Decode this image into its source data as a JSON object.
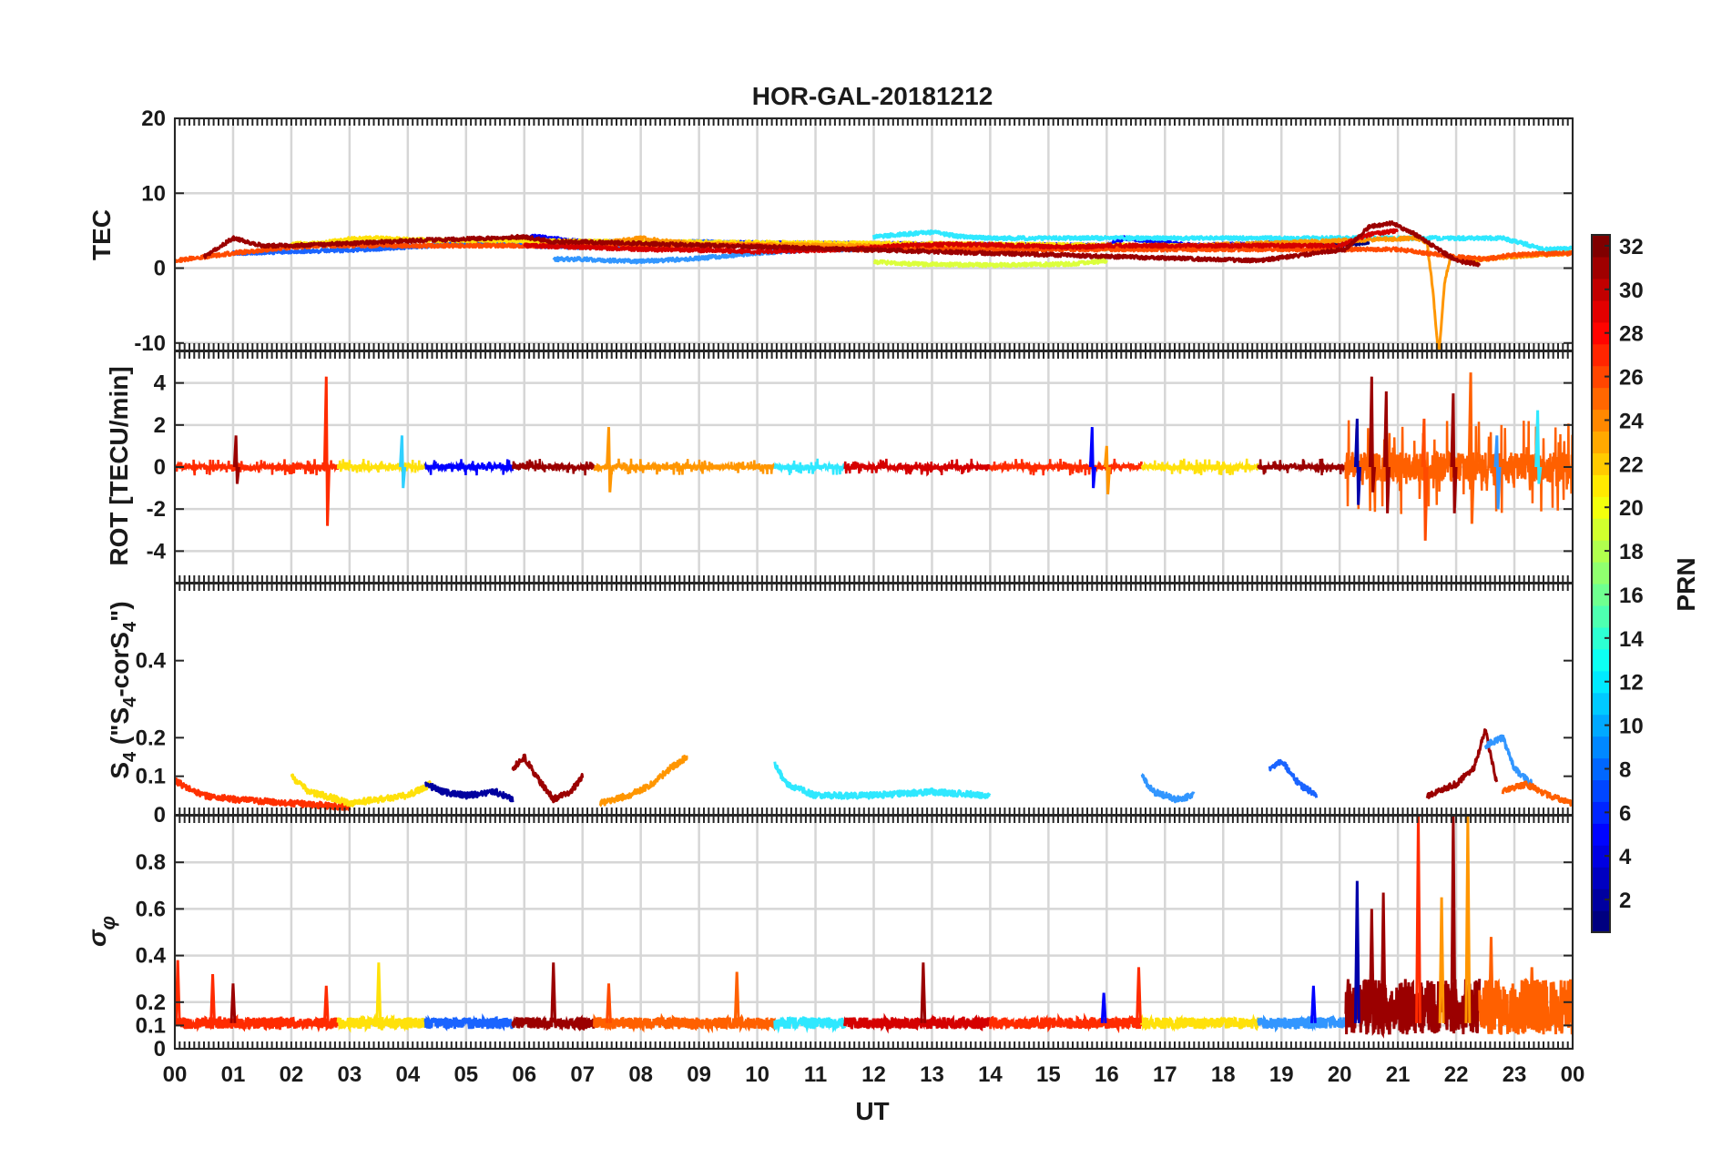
{
  "chart_data": [
    {
      "type": "line",
      "title": "HOR-GAL-20181212",
      "panel": "TEC",
      "ylabel": "TEC",
      "xlabel": "",
      "ylim": [
        -11,
        20
      ],
      "yticks": [
        20,
        10,
        0,
        -10
      ],
      "ytick_labels": [
        "20",
        "10",
        "0",
        "-10"
      ],
      "grid": true,
      "series": [
        {
          "prn": 1,
          "color": "#00007f",
          "x": [
            19.5,
            20.0,
            20.5
          ],
          "y": [
            3.2,
            3.0,
            3.5
          ]
        },
        {
          "prn": 4,
          "color": "#0000ff",
          "x": [
            4.5,
            5.5,
            6.2,
            7.0,
            16.0,
            16.3,
            17.5,
            18.5,
            19.2
          ],
          "y": [
            3.2,
            3.6,
            4.2,
            3.5,
            3.0,
            4.0,
            3.0,
            3.2,
            3.5
          ]
        },
        {
          "prn": 8,
          "color": "#1a64ff",
          "x": [
            1.0,
            2.0,
            3.0,
            4.5,
            5.5,
            6.0,
            7.0,
            9.0,
            10.5,
            11.5
          ],
          "y": [
            2.0,
            2.2,
            2.4,
            3.0,
            3.5,
            3.0,
            2.8,
            3.5,
            3.0,
            2.5
          ]
        },
        {
          "prn": 10,
          "color": "#3296ff",
          "x": [
            6.5,
            7.0,
            7.5,
            8.0,
            9.0,
            10.0,
            11.0,
            12.0,
            12.5
          ],
          "y": [
            1.2,
            1.2,
            1.0,
            0.9,
            1.3,
            2.0,
            2.5,
            2.5,
            2.6
          ]
        },
        {
          "prn": 13,
          "color": "#2fe8ff",
          "x": [
            12.0,
            12.5,
            13.0,
            13.5,
            14.0,
            22.8,
            23.2,
            23.5,
            24.0
          ],
          "y": [
            4.2,
            4.5,
            4.8,
            4.2,
            4.0,
            4.0,
            3.2,
            2.5,
            2.6
          ]
        },
        {
          "prn": 19,
          "color": "#dcff3c",
          "x": [
            12.0,
            12.5,
            13.0,
            14.0,
            15.0,
            15.5,
            16.0
          ],
          "y": [
            0.8,
            0.6,
            0.5,
            0.4,
            0.5,
            0.6,
            1.0
          ]
        },
        {
          "prn": 21,
          "color": "#ffe10a",
          "x": [
            2.0,
            2.5,
            3.0,
            3.5,
            4.0,
            4.5,
            17.0,
            18.0
          ],
          "y": [
            3.2,
            3.3,
            3.9,
            4.0,
            3.8,
            3.7,
            3.0,
            2.8
          ]
        },
        {
          "prn": 23,
          "color": "#ff9600",
          "x": [
            7.5,
            8.0,
            8.5,
            9.0,
            15.0,
            16.0,
            21.3,
            21.5,
            21.6,
            21.7,
            21.8,
            21.9,
            22.2,
            23.0,
            24.0
          ],
          "y": [
            3.5,
            4.0,
            3.5,
            3.2,
            2.7,
            2.6,
            4.0,
            3.5,
            -3.0,
            -12.0,
            -2.0,
            1.5,
            1.0,
            1.6,
            2.0
          ]
        },
        {
          "prn": 26,
          "color": "#ff4b00",
          "x": [
            0.0,
            1.0,
            2.0,
            2.5,
            10.0,
            11.0,
            15.0,
            21.0,
            22.0,
            22.5,
            23.0,
            24.0
          ],
          "y": [
            1.0,
            2.0,
            2.8,
            3.0,
            3.0,
            2.5,
            2.5,
            2.5,
            1.5,
            1.2,
            1.8,
            2.0
          ]
        },
        {
          "prn": 29,
          "color": "#d50000",
          "x": [
            6.0,
            7.0,
            8.0,
            9.0,
            10.0,
            11.5,
            12.5,
            13.5,
            14.5,
            15.5,
            16.0,
            20.0,
            20.5,
            21.0
          ],
          "y": [
            3.0,
            2.8,
            2.5,
            2.4,
            2.2,
            2.5,
            3.0,
            3.2,
            3.0,
            2.8,
            3.0,
            3.0,
            4.5,
            5.0
          ]
        },
        {
          "prn": 31,
          "color": "#9b0000",
          "x": [
            0.5,
            1.0,
            1.5,
            2.0,
            3.0,
            4.5,
            5.5,
            6.0,
            6.5,
            7.0,
            18.6,
            18.8,
            20.1,
            20.5,
            20.9,
            21.3,
            21.6,
            22.0,
            22.4
          ],
          "y": [
            1.5,
            4.0,
            3.0,
            3.0,
            3.3,
            3.8,
            4.0,
            4.2,
            3.5,
            3.5,
            1.0,
            1.2,
            2.5,
            5.5,
            6.0,
            4.5,
            3.0,
            1.0,
            0.5
          ]
        }
      ]
    },
    {
      "type": "line",
      "panel": "ROT",
      "ylabel": "ROT [TECU/min]",
      "xlabel": "",
      "ylim": [
        -5.5,
        5.5
      ],
      "yticks": [
        4,
        2,
        0,
        -2,
        -4
      ],
      "ytick_labels": [
        "4",
        "2",
        "0",
        "-2",
        "-4"
      ],
      "grid": true,
      "spikes": [
        {
          "x": 1.05,
          "ymax": 1.5,
          "ymin": -0.8,
          "color": "#9b0000"
        },
        {
          "x": 2.6,
          "ymax": 4.3,
          "ymin": -2.8,
          "color": "#ff2b00"
        },
        {
          "x": 3.9,
          "ymax": 1.5,
          "ymin": -1.0,
          "color": "#2fd0ff"
        },
        {
          "x": 7.45,
          "ymax": 1.9,
          "ymin": -1.2,
          "color": "#ff9600"
        },
        {
          "x": 15.75,
          "ymax": 1.9,
          "ymin": -1.0,
          "color": "#0000ff"
        },
        {
          "x": 16.0,
          "ymax": 1.0,
          "ymin": -1.3,
          "color": "#ff9600"
        },
        {
          "x": 20.3,
          "ymax": 2.3,
          "ymin": -1.8,
          "color": "#0000aa"
        },
        {
          "x": 20.55,
          "ymax": 4.3,
          "ymin": -1.2,
          "color": "#9b0000"
        },
        {
          "x": 20.8,
          "ymax": 3.6,
          "ymin": -2.2,
          "color": "#9b0000"
        },
        {
          "x": 21.45,
          "ymax": 2.3,
          "ymin": -3.5,
          "color": "#ff4b00"
        },
        {
          "x": 21.95,
          "ymax": 3.5,
          "ymin": -2.2,
          "color": "#9b0000"
        },
        {
          "x": 22.25,
          "ymax": 4.5,
          "ymin": -2.7,
          "color": "#ff6000"
        },
        {
          "x": 22.7,
          "ymax": 1.5,
          "ymin": -2.0,
          "color": "#3296ff"
        },
        {
          "x": 23.4,
          "ymax": 2.7,
          "ymin": -0.8,
          "color": "#2fe8ff"
        }
      ]
    },
    {
      "type": "line",
      "panel": "S4",
      "ylabel": "S4 (\"S4-corS4\")",
      "xlabel": "",
      "ylim": [
        0,
        0.6
      ],
      "yticks": [
        0.4,
        0.2,
        0.1,
        0
      ],
      "ytick_labels": [
        "0.4",
        "0.2",
        "0.1",
        "0"
      ],
      "grid": false,
      "series": [
        {
          "prn": 26,
          "color": "#ff3000",
          "x": [
            0.0,
            0.2,
            0.5,
            1.0,
            2.0,
            3.0
          ],
          "y": [
            0.09,
            0.07,
            0.05,
            0.04,
            0.03,
            0.02
          ]
        },
        {
          "prn": 21,
          "color": "#ffe10a",
          "x": [
            2.0,
            2.3,
            2.8,
            3.0,
            4.0,
            4.4
          ],
          "y": [
            0.1,
            0.06,
            0.04,
            0.03,
            0.05,
            0.08
          ]
        },
        {
          "prn": 2,
          "color": "#00009f",
          "x": [
            4.3,
            4.6,
            5.0,
            5.5,
            5.8
          ],
          "y": [
            0.08,
            0.06,
            0.05,
            0.06,
            0.04
          ]
        },
        {
          "prn": 31,
          "color": "#9b0000",
          "x": [
            5.8,
            6.0,
            6.2,
            6.5,
            6.8,
            7.0
          ],
          "y": [
            0.12,
            0.15,
            0.1,
            0.04,
            0.06,
            0.1
          ]
        },
        {
          "prn": 23,
          "color": "#ff9600",
          "x": [
            7.3,
            7.8,
            8.2,
            8.5,
            8.8
          ],
          "y": [
            0.03,
            0.05,
            0.08,
            0.12,
            0.15
          ]
        },
        {
          "prn": 12,
          "color": "#2fe8ff",
          "x": [
            10.3,
            10.5,
            11.0,
            12.0,
            13.0,
            14.0
          ],
          "y": [
            0.13,
            0.08,
            0.05,
            0.05,
            0.06,
            0.05
          ]
        },
        {
          "prn": 10,
          "color": "#3296ff",
          "x": [
            16.6,
            16.8,
            17.2,
            17.5
          ],
          "y": [
            0.1,
            0.06,
            0.04,
            0.05
          ]
        },
        {
          "prn": 9,
          "color": "#1a64ff",
          "x": [
            18.8,
            19.0,
            19.3,
            19.6
          ],
          "y": [
            0.12,
            0.14,
            0.08,
            0.05
          ]
        },
        {
          "prn": 31,
          "color": "#9b0000",
          "x": [
            21.5,
            22.0,
            22.3,
            22.5,
            22.7
          ],
          "y": [
            0.05,
            0.08,
            0.12,
            0.22,
            0.08
          ]
        },
        {
          "prn": 10,
          "color": "#3296ff",
          "x": [
            22.5,
            22.8,
            23.0,
            23.3
          ],
          "y": [
            0.18,
            0.2,
            0.12,
            0.08
          ]
        },
        {
          "prn": 25,
          "color": "#ff6000",
          "x": [
            22.8,
            23.2,
            23.6,
            24.0
          ],
          "y": [
            0.06,
            0.08,
            0.05,
            0.03
          ]
        }
      ]
    },
    {
      "type": "line",
      "panel": "sigma_phi",
      "ylabel": "σφ",
      "xlabel": "UT",
      "xlim": [
        0,
        24
      ],
      "xtick_labels": [
        "00",
        "01",
        "02",
        "03",
        "04",
        "05",
        "06",
        "07",
        "08",
        "09",
        "10",
        "11",
        "12",
        "13",
        "14",
        "15",
        "16",
        "17",
        "18",
        "19",
        "20",
        "21",
        "22",
        "23",
        "00"
      ],
      "ylim": [
        0,
        1
      ],
      "yticks": [
        0.8,
        0.6,
        0.4,
        0.2,
        0.1,
        0
      ],
      "ytick_labels": [
        "0.8",
        "0.6",
        "0.4",
        "0.2",
        "0.1",
        "0"
      ],
      "grid": true,
      "spikes": [
        {
          "x": 0.05,
          "ymax": 0.38,
          "color": "#ff2b00"
        },
        {
          "x": 0.65,
          "ymax": 0.32,
          "color": "#ff2b00"
        },
        {
          "x": 1.0,
          "ymax": 0.28,
          "color": "#9b0000"
        },
        {
          "x": 2.6,
          "ymax": 0.27,
          "color": "#ff2b00"
        },
        {
          "x": 3.5,
          "ymax": 0.37,
          "color": "#ffe10a"
        },
        {
          "x": 6.5,
          "ymax": 0.37,
          "color": "#9b0000"
        },
        {
          "x": 7.45,
          "ymax": 0.28,
          "color": "#ff4b00"
        },
        {
          "x": 9.65,
          "ymax": 0.33,
          "color": "#ff6000"
        },
        {
          "x": 12.85,
          "ymax": 0.37,
          "color": "#9b0000"
        },
        {
          "x": 15.95,
          "ymax": 0.24,
          "color": "#0000ff"
        },
        {
          "x": 16.55,
          "ymax": 0.35,
          "color": "#ff2b00"
        },
        {
          "x": 19.55,
          "ymax": 0.27,
          "color": "#0000ff"
        },
        {
          "x": 20.3,
          "ymax": 0.72,
          "color": "#0000aa"
        },
        {
          "x": 20.55,
          "ymax": 0.6,
          "color": "#9b0000"
        },
        {
          "x": 20.75,
          "ymax": 0.67,
          "color": "#9b0000"
        },
        {
          "x": 21.35,
          "ymax": 1.0,
          "color": "#ff2b00"
        },
        {
          "x": 21.75,
          "ymax": 0.65,
          "color": "#ff9600"
        },
        {
          "x": 21.95,
          "ymax": 1.0,
          "color": "#9b0000"
        },
        {
          "x": 22.2,
          "ymax": 1.0,
          "color": "#ff9600"
        },
        {
          "x": 22.6,
          "ymax": 0.48,
          "color": "#ff6000"
        },
        {
          "x": 23.3,
          "ymax": 0.35,
          "color": "#ff6000"
        }
      ],
      "segments": [
        {
          "x0": 0.0,
          "x1": 2.8,
          "color": "#ff2b00"
        },
        {
          "x0": 2.8,
          "x1": 4.3,
          "color": "#ffe10a"
        },
        {
          "x0": 4.3,
          "x1": 5.8,
          "color": "#1a64ff"
        },
        {
          "x0": 5.8,
          "x1": 7.2,
          "color": "#9b0000"
        },
        {
          "x0": 7.2,
          "x1": 10.3,
          "color": "#ff6000"
        },
        {
          "x0": 10.3,
          "x1": 11.5,
          "color": "#2fe8ff"
        },
        {
          "x0": 11.5,
          "x1": 14.0,
          "color": "#d50000"
        },
        {
          "x0": 14.0,
          "x1": 16.6,
          "color": "#ff2b00"
        },
        {
          "x0": 16.6,
          "x1": 18.6,
          "color": "#ffe10a"
        },
        {
          "x0": 18.6,
          "x1": 20.1,
          "color": "#3296ff"
        },
        {
          "x0": 20.1,
          "x1": 22.4,
          "color": "#9b0000"
        },
        {
          "x0": 22.4,
          "x1": 24.0,
          "color": "#ff6000"
        }
      ]
    }
  ],
  "colorbar": {
    "label": "PRN",
    "range": [
      1,
      32
    ],
    "tick_values": [
      32,
      30,
      28,
      26,
      24,
      22,
      20,
      18,
      16,
      14,
      12,
      10,
      8,
      6,
      4,
      2
    ],
    "tick_labels": [
      "32",
      "30",
      "28",
      "26",
      "24",
      "22",
      "20",
      "18",
      "16",
      "14",
      "12",
      "10",
      "8",
      "6",
      "4",
      "2"
    ],
    "colormap": "jet"
  },
  "labels": {
    "s4_main": "S",
    "s4_sub": "4",
    "s4_rest_a": " (\"S",
    "s4_rest_b": "-corS",
    "s4_rest_c": "\")",
    "sigma": "σ",
    "phi": "φ"
  }
}
